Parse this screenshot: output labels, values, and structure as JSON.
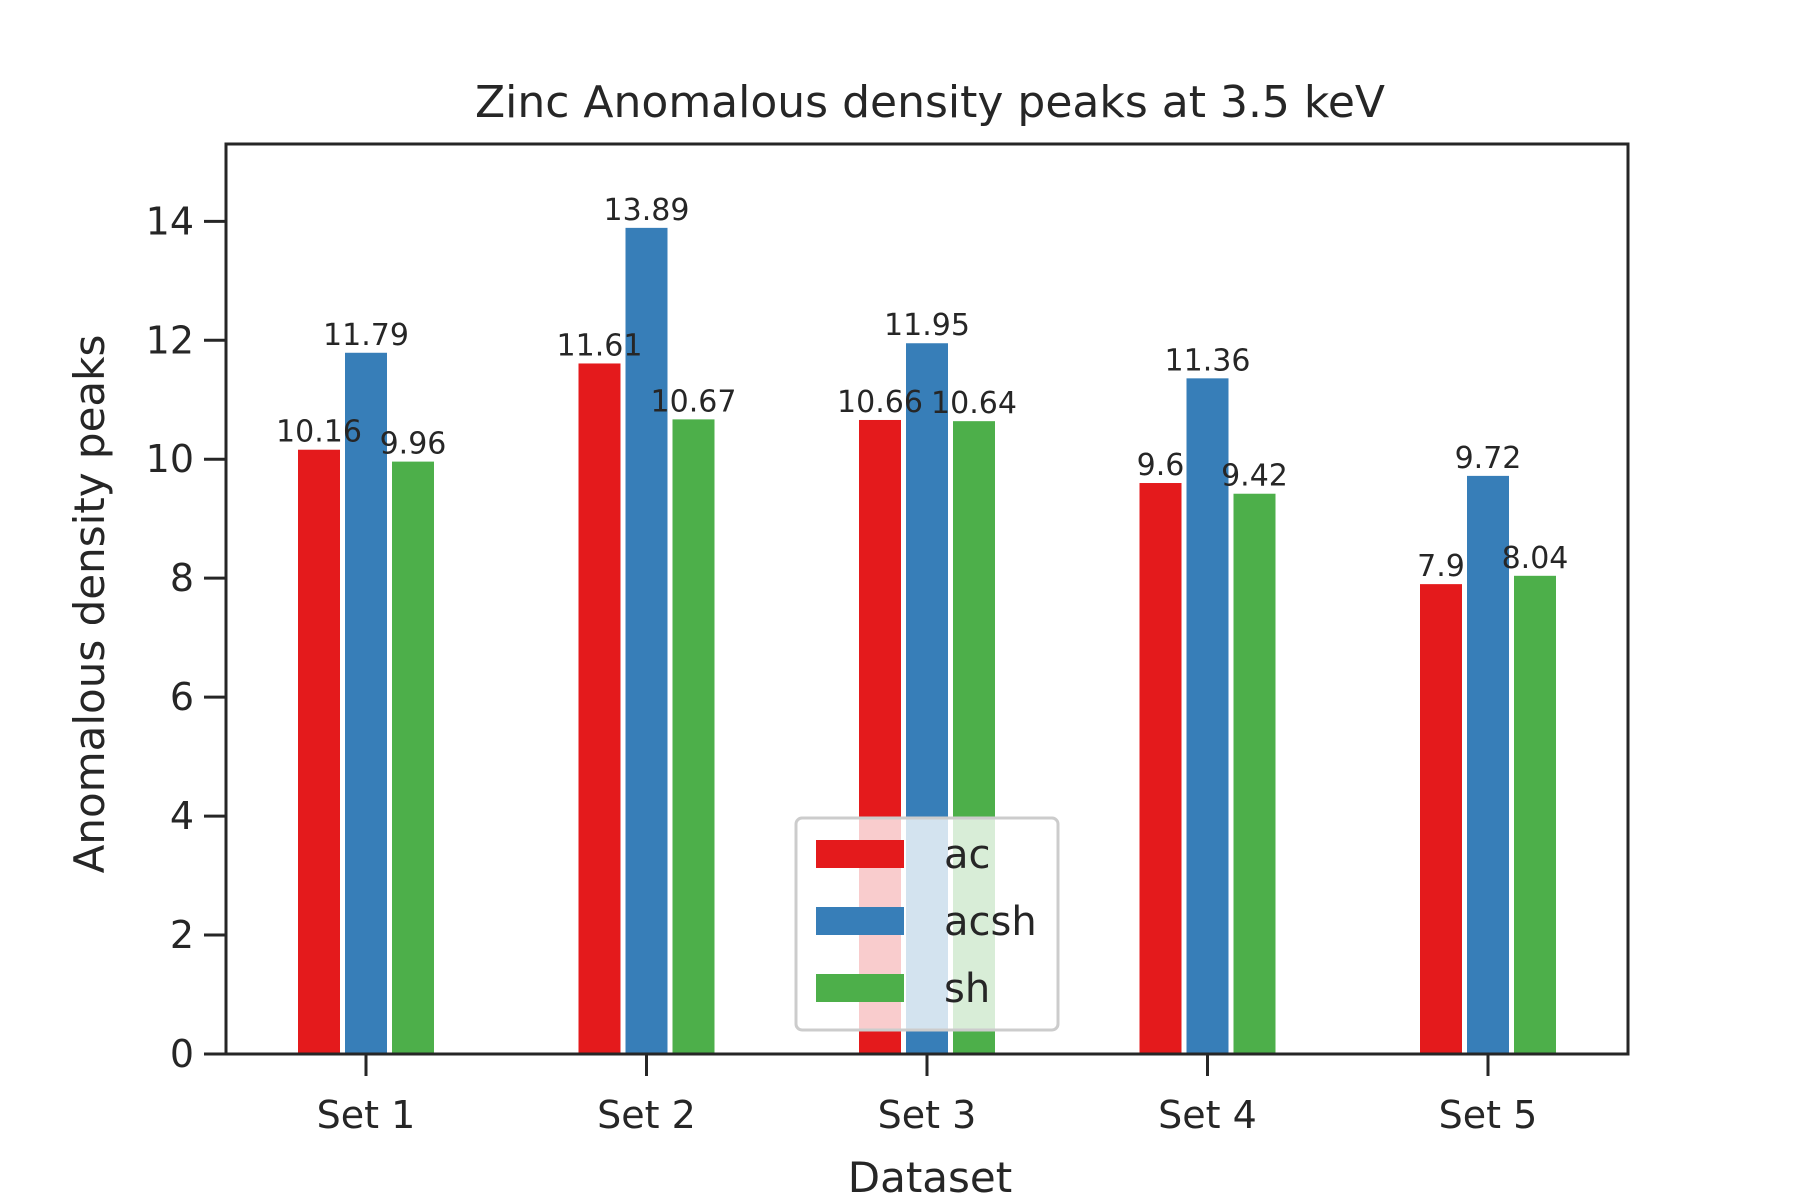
{
  "chart_data": {
    "type": "bar",
    "title": "Zinc Anomalous density peaks at 3.5 keV",
    "xlabel": "Dataset",
    "ylabel": "Anomalous density peaks",
    "categories": [
      "Set 1",
      "Set 2",
      "Set 3",
      "Set 4",
      "Set 5"
    ],
    "ylim": [
      0,
      15.3
    ],
    "yticks": [
      0,
      2,
      4,
      6,
      8,
      10,
      12,
      14
    ],
    "grid": false,
    "legend_position": "bottom-center",
    "series": [
      {
        "name": "ac",
        "color": "#e41a1c",
        "values": [
          10.16,
          11.61,
          10.66,
          9.6,
          7.9
        ],
        "labels": [
          "10.16",
          "11.61",
          "10.66",
          "9.6",
          "7.9"
        ]
      },
      {
        "name": "acsh",
        "color": "#377eb8",
        "values": [
          11.79,
          13.89,
          11.95,
          11.36,
          9.72
        ],
        "labels": [
          "11.79",
          "13.89",
          "11.95",
          "11.36",
          "9.72"
        ]
      },
      {
        "name": "sh",
        "color": "#4daf4a",
        "values": [
          9.96,
          10.67,
          10.64,
          9.42,
          8.04
        ],
        "labels": [
          "9.96",
          "10.67",
          "10.64",
          "9.42",
          "8.04"
        ]
      }
    ]
  }
}
